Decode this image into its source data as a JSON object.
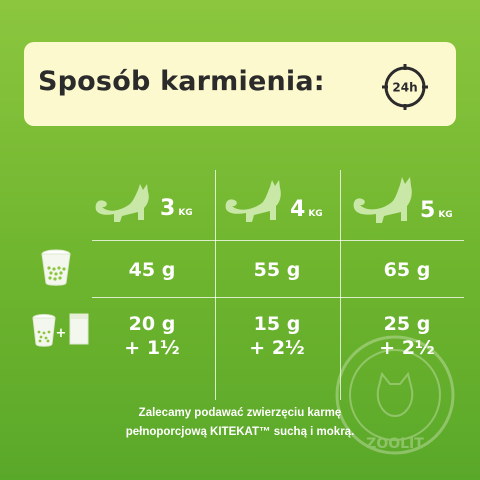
{
  "header": {
    "title": "Sposób karmienia:",
    "clock_label": "24h",
    "background": "#fdf9cf"
  },
  "weights": [
    {
      "number": "3",
      "unit": "KG"
    },
    {
      "number": "4",
      "unit": "KG"
    },
    {
      "number": "5",
      "unit": "KG"
    }
  ],
  "rows": {
    "dry": {
      "icon": "dry-food-cup-icon",
      "values": [
        "45 g",
        "55 g",
        "65 g"
      ]
    },
    "mixed": {
      "icon": "cup-plus-pouch-icon",
      "values": [
        {
          "line1": "20 g",
          "line2": "+ 1½"
        },
        {
          "line1": "15 g",
          "line2": "+ 2½"
        },
        {
          "line1": "25 g",
          "line2": "+ 2½"
        }
      ]
    }
  },
  "note": {
    "line1": "Zalecamy podawać zwierzęciu karmę",
    "line2": "pełnoporcjową KITEKAT™ suchą i mokrą."
  },
  "watermark": {
    "text": "ZOOLIT",
    "icon": "zoolit-stamp-icon"
  },
  "colors": {
    "green_top": "#8cc63f",
    "green_bottom": "#5aa82a",
    "cat_fill": "#c9e8a8",
    "text": "#ffffff"
  }
}
